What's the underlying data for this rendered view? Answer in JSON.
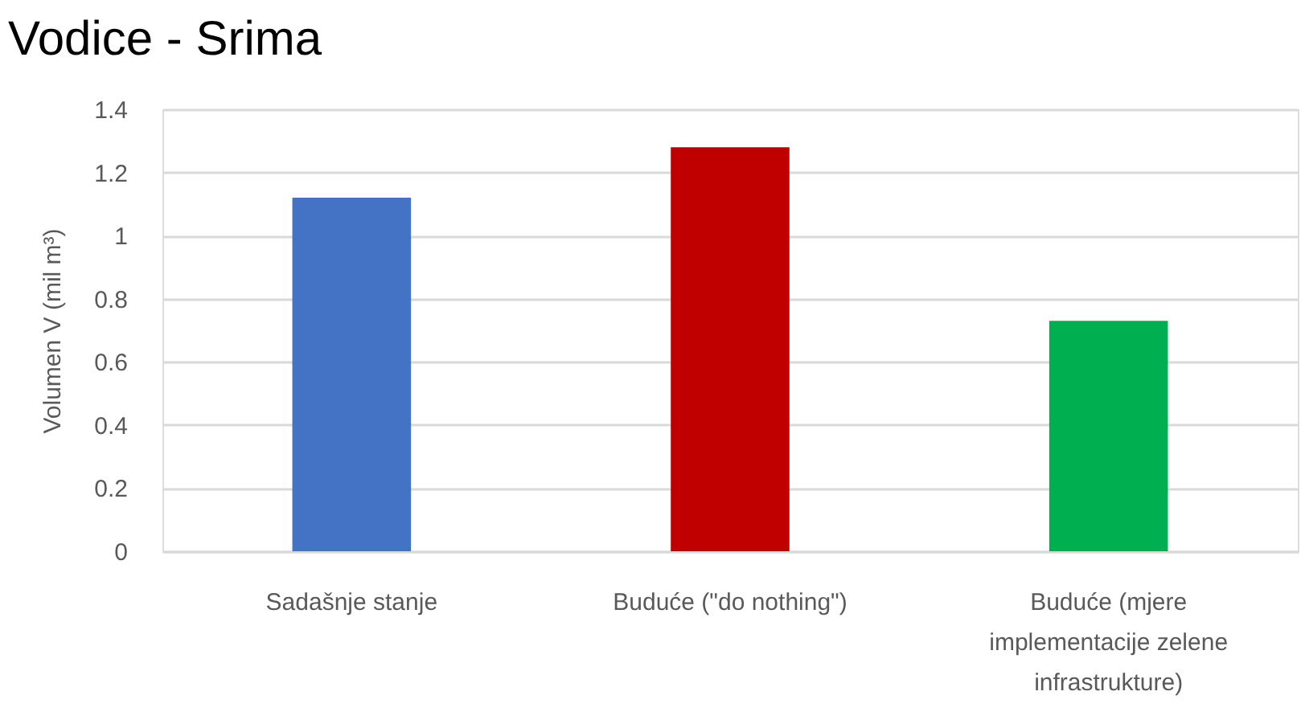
{
  "chart_data": {
    "type": "bar",
    "title": "Vodice - Srima",
    "ylabel": "Volumen V (mil m³)",
    "categories": [
      "Sadašnje stanje",
      "Buduće (\"do nothing\")",
      "Buduće (mjere implementacije zelene infrastrukture)"
    ],
    "values": [
      1.12,
      1.28,
      0.73
    ],
    "colors": [
      "#4472c4",
      "#c00000",
      "#00b050"
    ],
    "ylim": [
      0,
      1.4
    ],
    "yticks": [
      0,
      0.2,
      0.4,
      0.6,
      0.8,
      1,
      1.2,
      1.4
    ],
    "grid": "y"
  }
}
